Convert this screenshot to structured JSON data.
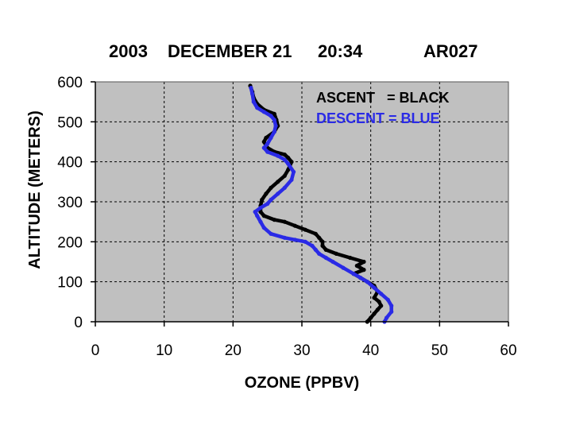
{
  "title": {
    "year": "2003",
    "date": "DECEMBER 21",
    "time": "20:34",
    "flight": "AR027"
  },
  "chart_data": {
    "type": "line",
    "title": "2003  DECEMBER 21   20:34        AR027",
    "xlabel": "OZONE (PPBV)",
    "ylabel": "ALTITUDE (METERS)",
    "xlim": [
      0,
      60
    ],
    "ylim": [
      0,
      600
    ],
    "xticks": [
      "0",
      "10",
      "20",
      "30",
      "40",
      "50",
      "60"
    ],
    "yticks": [
      "0",
      "100",
      "200",
      "300",
      "400",
      "500",
      "600"
    ],
    "grid": true,
    "background": "#c0c0c0",
    "legend_placement": "top-right",
    "legend": [
      {
        "label": "ASCENT   = BLACK",
        "color": "#000000"
      },
      {
        "label": "DESCENT = BLUE",
        "color": "#2a2ae6"
      }
    ],
    "series": [
      {
        "color": "#000000",
        "points": [
          [
            39.5,
            0
          ],
          [
            40.0,
            10
          ],
          [
            40.5,
            20
          ],
          [
            41.0,
            30
          ],
          [
            41.5,
            40
          ],
          [
            41.2,
            50
          ],
          [
            40.5,
            60
          ],
          [
            41.0,
            75
          ],
          [
            40.5,
            90
          ],
          [
            39.5,
            100
          ],
          [
            38.5,
            110
          ],
          [
            37.5,
            120
          ],
          [
            39.0,
            130
          ],
          [
            38.0,
            140
          ],
          [
            39.0,
            150
          ],
          [
            37.0,
            160
          ],
          [
            35.0,
            170
          ],
          [
            33.5,
            180
          ],
          [
            33.0,
            190
          ],
          [
            33.0,
            200
          ],
          [
            32.5,
            210
          ],
          [
            32.0,
            220
          ],
          [
            30.5,
            230
          ],
          [
            29.0,
            240
          ],
          [
            27.5,
            250
          ],
          [
            26.0,
            255
          ],
          [
            24.5,
            265
          ],
          [
            24.0,
            275
          ],
          [
            24.0,
            290
          ],
          [
            24.2,
            305
          ],
          [
            24.8,
            320
          ],
          [
            25.5,
            335
          ],
          [
            26.5,
            350
          ],
          [
            27.5,
            365
          ],
          [
            28.0,
            380
          ],
          [
            28.5,
            400
          ],
          [
            28.0,
            410
          ],
          [
            27.5,
            418
          ],
          [
            26.0,
            425
          ],
          [
            25.0,
            435
          ],
          [
            24.5,
            450
          ],
          [
            24.8,
            460
          ],
          [
            26.0,
            475
          ],
          [
            26.5,
            490
          ],
          [
            26.3,
            505
          ],
          [
            26.0,
            520
          ],
          [
            24.5,
            530
          ],
          [
            23.5,
            545
          ],
          [
            23.0,
            560
          ],
          [
            22.8,
            575
          ],
          [
            22.5,
            590
          ]
        ]
      },
      {
        "color": "#2a2ae6",
        "points": [
          [
            42.0,
            0
          ],
          [
            42.3,
            10
          ],
          [
            43.0,
            25
          ],
          [
            43.0,
            40
          ],
          [
            42.5,
            55
          ],
          [
            41.5,
            70
          ],
          [
            40.5,
            85
          ],
          [
            39.5,
            100
          ],
          [
            38.5,
            110
          ],
          [
            37.5,
            120
          ],
          [
            36.0,
            135
          ],
          [
            34.5,
            150
          ],
          [
            33.5,
            160
          ],
          [
            32.5,
            170
          ],
          [
            32.0,
            180
          ],
          [
            31.5,
            190
          ],
          [
            30.5,
            200
          ],
          [
            29.0,
            205
          ],
          [
            27.5,
            210
          ],
          [
            25.5,
            220
          ],
          [
            24.5,
            235
          ],
          [
            24.0,
            250
          ],
          [
            23.5,
            265
          ],
          [
            23.2,
            275
          ],
          [
            24.0,
            285
          ],
          [
            25.0,
            295
          ],
          [
            25.5,
            305
          ],
          [
            26.5,
            320
          ],
          [
            27.5,
            335
          ],
          [
            28.5,
            355
          ],
          [
            28.8,
            375
          ],
          [
            28.0,
            395
          ],
          [
            27.5,
            405
          ],
          [
            26.5,
            415
          ],
          [
            25.0,
            425
          ],
          [
            24.5,
            435
          ],
          [
            25.0,
            445
          ],
          [
            25.5,
            460
          ],
          [
            26.0,
            475
          ],
          [
            26.2,
            490
          ],
          [
            26.0,
            505
          ],
          [
            25.5,
            515
          ],
          [
            24.5,
            525
          ],
          [
            23.5,
            535
          ],
          [
            23.0,
            550
          ],
          [
            22.8,
            570
          ],
          [
            22.6,
            585
          ]
        ]
      }
    ]
  }
}
